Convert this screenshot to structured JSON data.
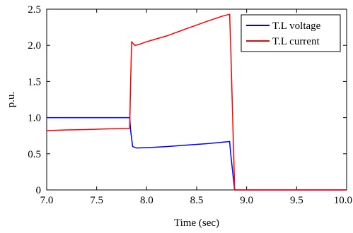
{
  "chart_data": {
    "type": "line",
    "xlabel": "Time (sec)",
    "ylabel": "p.u.",
    "xlim": [
      7.0,
      10.0
    ],
    "ylim": [
      0,
      2.5
    ],
    "x_ticks": [
      "7.0",
      "7.5",
      "8.0",
      "8.5",
      "9.0",
      "9.5",
      "10.0"
    ],
    "y_ticks": [
      "0",
      "0.5",
      "1.0",
      "1.5",
      "2.0",
      "2.5"
    ],
    "grid": false,
    "legend_position": "top-right",
    "series": [
      {
        "name": "T.L voltage",
        "color": "#0000ff",
        "points": [
          [
            7.0,
            1.0
          ],
          [
            7.83,
            1.0
          ],
          [
            7.84,
            0.82
          ],
          [
            7.86,
            0.6
          ],
          [
            7.9,
            0.58
          ],
          [
            8.0,
            0.585
          ],
          [
            8.2,
            0.6
          ],
          [
            8.4,
            0.62
          ],
          [
            8.6,
            0.64
          ],
          [
            8.8,
            0.665
          ],
          [
            8.83,
            0.67
          ],
          [
            8.84,
            0.5
          ],
          [
            8.88,
            0.0
          ],
          [
            10.0,
            0.0
          ]
        ]
      },
      {
        "name": "T.L current",
        "color": "#ff0000",
        "points": [
          [
            7.0,
            0.82
          ],
          [
            7.2,
            0.83
          ],
          [
            7.4,
            0.835
          ],
          [
            7.6,
            0.845
          ],
          [
            7.83,
            0.85
          ],
          [
            7.84,
            1.5
          ],
          [
            7.85,
            2.05
          ],
          [
            7.88,
            2.0
          ],
          [
            7.92,
            2.01
          ],
          [
            8.0,
            2.05
          ],
          [
            8.2,
            2.13
          ],
          [
            8.4,
            2.23
          ],
          [
            8.6,
            2.33
          ],
          [
            8.75,
            2.4
          ],
          [
            8.83,
            2.43
          ],
          [
            8.84,
            2.0
          ],
          [
            8.88,
            0.0
          ],
          [
            10.0,
            0.0
          ]
        ]
      }
    ]
  }
}
